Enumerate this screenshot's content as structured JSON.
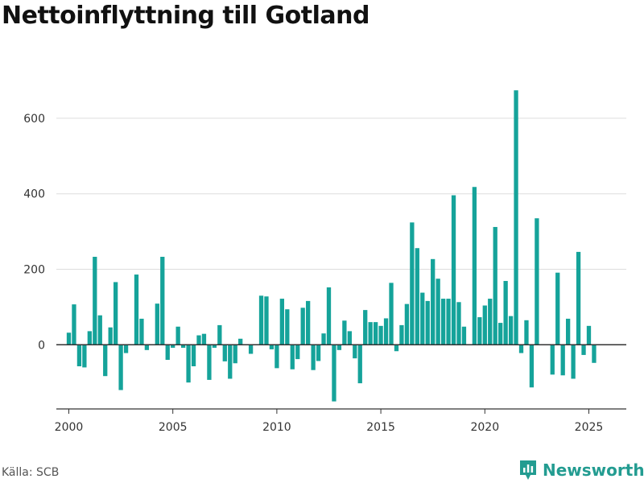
{
  "title": "Nettoinflyttning till Gotland",
  "source": "Källa: SCB",
  "brand": {
    "name": "Newsworthy",
    "icon": "newsworthy-logo-icon",
    "color": "#239c91"
  },
  "colors": {
    "bar": "#15a39a",
    "grid": "#dddddd",
    "axis": "#333333"
  },
  "chart_data": {
    "type": "bar",
    "title": "Nettoinflyttning till Gotland",
    "xlabel": "",
    "ylabel": "",
    "grid": true,
    "ylim": [
      -170,
      700
    ],
    "xlim": [
      1999.4,
      2026.8
    ],
    "yticks": [
      0,
      200,
      400,
      600
    ],
    "xticks": [
      2000,
      2005,
      2010,
      2015,
      2020,
      2025
    ],
    "series": [
      {
        "x": [
          2000.0,
          2000.25,
          2000.5,
          2000.75,
          2001.0,
          2001.25,
          2001.5,
          2001.75,
          2002.0,
          2002.25,
          2002.5,
          2002.75,
          2003.0,
          2003.25,
          2003.5,
          2003.75,
          2004.0,
          2004.25,
          2004.5,
          2004.75,
          2005.0,
          2005.25,
          2005.5,
          2005.75,
          2006.0,
          2006.25,
          2006.5,
          2006.75,
          2007.0,
          2007.25,
          2007.5,
          2007.75,
          2008.0,
          2008.25,
          2008.5,
          2008.75,
          2009.0,
          2009.25,
          2009.5,
          2009.75,
          2010.0,
          2010.25,
          2010.5,
          2010.75,
          2011.0,
          2011.25,
          2011.5,
          2011.75,
          2012.0,
          2012.25,
          2012.5,
          2012.75,
          2013.0,
          2013.25,
          2013.5,
          2013.75,
          2014.0,
          2014.25,
          2014.5,
          2014.75,
          2015.0,
          2015.25,
          2015.5,
          2015.75,
          2016.0,
          2016.25,
          2016.5,
          2016.75,
          2017.0,
          2017.25,
          2017.5,
          2017.75,
          2018.0,
          2018.25,
          2018.5,
          2018.75,
          2019.0,
          2019.25,
          2019.5,
          2019.75,
          2020.0,
          2020.25,
          2020.5,
          2020.75,
          2021.0,
          2021.25,
          2021.5,
          2021.75,
          2022.0,
          2022.25,
          2022.5,
          2022.75,
          2023.0,
          2023.25,
          2023.5,
          2023.75,
          2024.0,
          2024.25,
          2024.5,
          2024.75,
          2025.0,
          2025.25
        ],
        "values": [
          32,
          107,
          -57,
          -60,
          36,
          233,
          78,
          -83,
          46,
          166,
          -120,
          -22,
          0,
          186,
          69,
          -14,
          0,
          109,
          233,
          -40,
          -8,
          48,
          -8,
          -100,
          -57,
          25,
          29,
          -93,
          -8,
          52,
          -44,
          -90,
          -49,
          16,
          0,
          -24,
          0,
          130,
          128,
          -12,
          -62,
          122,
          94,
          -65,
          -38,
          98,
          116,
          -67,
          -43,
          30,
          152,
          -150,
          -14,
          64,
          36,
          -36,
          -102,
          92,
          60,
          60,
          50,
          70,
          164,
          -17,
          52,
          108,
          324,
          256,
          138,
          116,
          227,
          175,
          122,
          122,
          396,
          113,
          48,
          0,
          418,
          73,
          104,
          122,
          312,
          58,
          169,
          76,
          674,
          -22,
          65,
          -113,
          335,
          0,
          0,
          -79,
          191,
          -81,
          69,
          -90,
          246,
          -27,
          50,
          -48
        ]
      }
    ]
  }
}
